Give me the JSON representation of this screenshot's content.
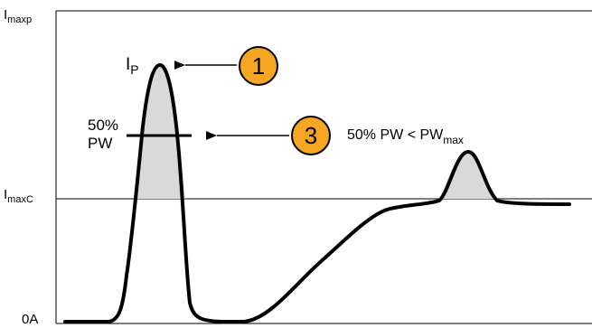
{
  "axis": {
    "y_top_main": "I",
    "y_top_sub": "maxp",
    "y_mid_main": "I",
    "y_mid_sub": "maxC",
    "y_zero": "0A"
  },
  "peak": {
    "label_main": "I",
    "label_sub": "P"
  },
  "pulse_width": {
    "line1": "50%",
    "line2": "PW"
  },
  "callouts": [
    {
      "number": "1"
    },
    {
      "number": "3",
      "text_main": "50% PW < PW",
      "text_sub": "max"
    }
  ],
  "colors": {
    "badge_fill": "#f5a623",
    "peak_fill": "#d9d9d9",
    "stroke": "#000000"
  }
}
